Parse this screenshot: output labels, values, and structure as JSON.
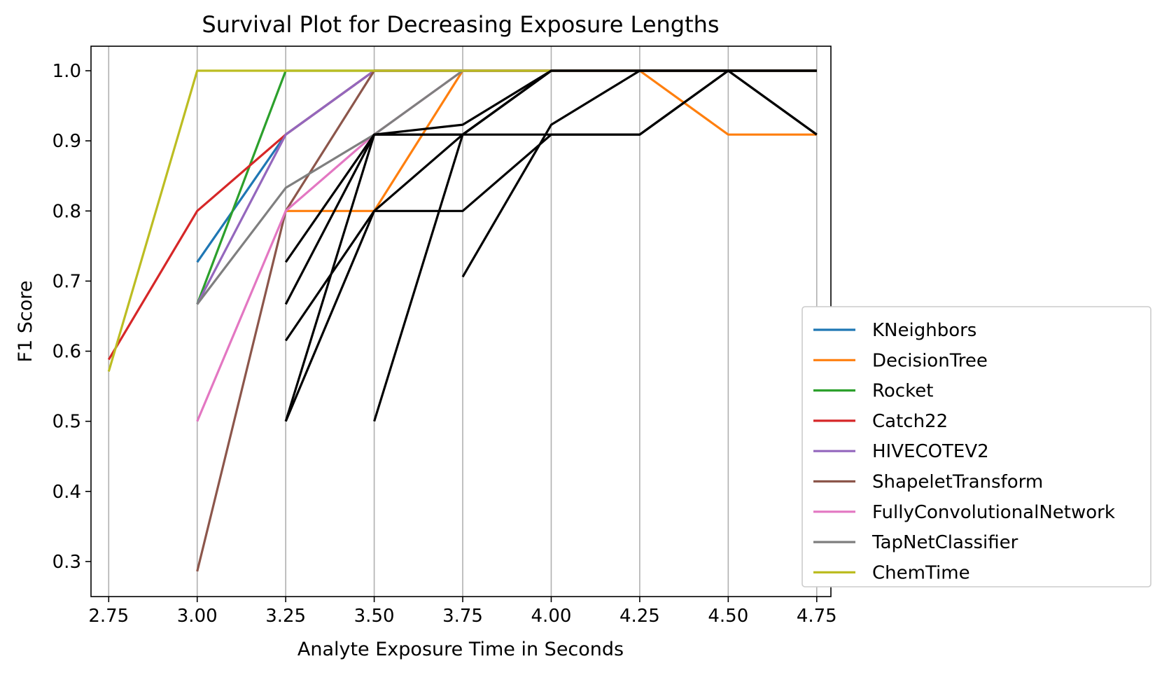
{
  "chart_data": {
    "type": "line",
    "title": "Survival Plot for Decreasing Exposure Lengths",
    "xlabel": "Analyte Exposure Time in Seconds",
    "ylabel": "F1 Score",
    "xlim": [
      2.7,
      4.79
    ],
    "ylim": [
      0.25,
      1.035
    ],
    "xticks": [
      2.75,
      3.0,
      3.25,
      3.5,
      3.75,
      4.0,
      4.25,
      4.5,
      4.75
    ],
    "xtick_labels": [
      "2.75",
      "3.00",
      "3.25",
      "3.50",
      "3.75",
      "4.00",
      "4.25",
      "4.50",
      "4.75"
    ],
    "yticks": [
      0.3,
      0.4,
      0.5,
      0.6,
      0.7,
      0.8,
      0.9,
      1.0
    ],
    "ytick_labels": [
      "0.3",
      "0.4",
      "0.5",
      "0.6",
      "0.7",
      "0.8",
      "0.9",
      "1.0"
    ],
    "grid": "vertical",
    "legend_position": "right",
    "series": [
      {
        "name": "KNeighbors",
        "color": "#1f77b4",
        "x": [
          3.0,
          3.25,
          3.5,
          3.75,
          4.0,
          4.25,
          4.5,
          4.75
        ],
        "y": [
          0.727,
          0.909,
          1.0,
          1.0,
          1.0,
          1.0,
          1.0,
          1.0
        ]
      },
      {
        "name": "DecisionTree",
        "color": "#ff7f0e",
        "x": [
          3.25,
          3.5,
          3.75,
          4.0,
          4.25,
          4.5,
          4.75
        ],
        "y": [
          0.8,
          0.8,
          1.0,
          1.0,
          1.0,
          0.909,
          0.909
        ]
      },
      {
        "name": "Rocket",
        "color": "#2ca02c",
        "x": [
          3.0,
          3.25,
          3.5,
          3.75,
          4.0,
          4.25,
          4.5,
          4.75
        ],
        "y": [
          0.667,
          1.0,
          1.0,
          1.0,
          1.0,
          1.0,
          1.0,
          1.0
        ]
      },
      {
        "name": "Catch22",
        "color": "#d62728",
        "x": [
          2.75,
          3.0,
          3.25,
          3.5,
          3.75,
          4.0,
          4.25,
          4.5,
          4.75
        ],
        "y": [
          0.588,
          0.8,
          0.909,
          1.0,
          1.0,
          1.0,
          1.0,
          1.0,
          1.0
        ]
      },
      {
        "name": "HIVECOTEV2",
        "color": "#9467bd",
        "x": [
          3.0,
          3.25,
          3.5,
          3.75,
          4.0,
          4.25,
          4.5,
          4.75
        ],
        "y": [
          0.667,
          0.909,
          1.0,
          1.0,
          1.0,
          1.0,
          1.0,
          1.0
        ]
      },
      {
        "name": "ShapeletTransform",
        "color": "#8c564b",
        "x": [
          3.0,
          3.25,
          3.5,
          3.75,
          4.0,
          4.25,
          4.5,
          4.75
        ],
        "y": [
          0.286,
          0.8,
          1.0,
          1.0,
          1.0,
          1.0,
          1.0,
          1.0
        ]
      },
      {
        "name": "FullyConvolutionalNetwork",
        "color": "#e377c2",
        "x": [
          3.0,
          3.25,
          3.5,
          3.75,
          4.0,
          4.25,
          4.5,
          4.75
        ],
        "y": [
          0.5,
          0.8,
          0.909,
          1.0,
          1.0,
          1.0,
          1.0,
          1.0
        ]
      },
      {
        "name": "TapNetClassifier",
        "color": "#7f7f7f",
        "x": [
          3.0,
          3.25,
          3.5,
          3.75,
          4.0,
          4.25,
          4.5,
          4.75
        ],
        "y": [
          0.667,
          0.833,
          0.909,
          1.0,
          1.0,
          1.0,
          1.0,
          1.0
        ]
      },
      {
        "name": "ChemTime",
        "color": "#bcbd22",
        "x": [
          2.75,
          3.0,
          3.25,
          3.5,
          3.75,
          4.0,
          4.25,
          4.5,
          4.75
        ],
        "y": [
          0.571,
          1.0,
          1.0,
          1.0,
          1.0,
          1.0,
          1.0,
          1.0,
          1.0
        ]
      }
    ],
    "unlabeled_series": [
      {
        "color": "#000000",
        "x": [
          3.25,
          3.5,
          3.75,
          4.0
        ],
        "y": [
          0.727,
          0.909,
          0.923,
          1.0
        ]
      },
      {
        "color": "#000000",
        "x": [
          3.25,
          3.5,
          3.75,
          4.0
        ],
        "y": [
          0.667,
          0.909,
          0.909,
          1.0
        ]
      },
      {
        "color": "#000000",
        "x": [
          3.25,
          3.5,
          3.75,
          4.0,
          4.25,
          4.5,
          4.75
        ],
        "y": [
          0.615,
          0.8,
          0.8,
          0.909,
          0.909,
          1.0,
          0.909
        ]
      },
      {
        "color": "#000000",
        "x": [
          3.25,
          3.5,
          3.75,
          4.0,
          4.25,
          4.5,
          4.75
        ],
        "y": [
          0.5,
          0.909,
          0.909,
          0.909,
          0.909,
          1.0,
          0.909
        ]
      },
      {
        "color": "#000000",
        "x": [
          3.25,
          3.5,
          3.75,
          4.0,
          4.25,
          4.5,
          4.75
        ],
        "y": [
          0.5,
          0.8,
          0.909,
          1.0,
          1.0,
          1.0,
          1.0
        ]
      },
      {
        "color": "#000000",
        "x": [
          3.5,
          3.75,
          4.0,
          4.25,
          4.5,
          4.75
        ],
        "y": [
          0.5,
          0.909,
          1.0,
          1.0,
          1.0,
          1.0
        ]
      },
      {
        "color": "#000000",
        "x": [
          3.75,
          4.0,
          4.25,
          4.5,
          4.75
        ],
        "y": [
          0.706,
          0.923,
          1.0,
          1.0,
          1.0
        ]
      }
    ]
  }
}
